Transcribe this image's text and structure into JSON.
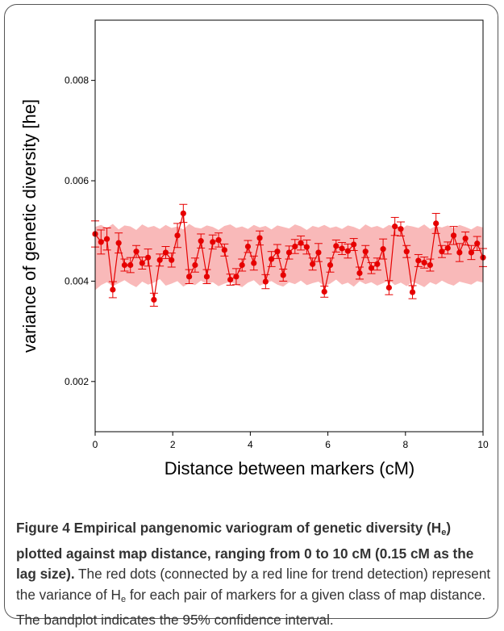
{
  "chart_data": {
    "type": "line",
    "ylabel": "variance of genetic diversity [he]",
    "xlabel": "Distance between markers (cM)",
    "xlim": [
      0,
      10
    ],
    "ylim": [
      0.001,
      0.0092
    ],
    "xticks": [
      0,
      2,
      4,
      6,
      8,
      10
    ],
    "yticks": [
      0.002,
      0.004,
      0.006,
      0.008
    ],
    "ytick_labels": [
      "0.002",
      "0.004",
      "0.006",
      "0.008"
    ],
    "colors": {
      "line": "#e60000",
      "band": "#f9b9b9",
      "points": "#e60000"
    },
    "lag": 0.15,
    "values": [
      0.00494,
      0.00478,
      0.00484,
      0.00383,
      0.00476,
      0.00432,
      0.00432,
      0.00459,
      0.00436,
      0.00447,
      0.00363,
      0.00442,
      0.00457,
      0.00442,
      0.00491,
      0.00535,
      0.00409,
      0.00432,
      0.0048,
      0.00409,
      0.00478,
      0.00482,
      0.00462,
      0.00403,
      0.00409,
      0.00432,
      0.00469,
      0.00436,
      0.00486,
      0.00399,
      0.00444,
      0.00459,
      0.00412,
      0.00457,
      0.00469,
      0.00476,
      0.00468,
      0.00434,
      0.00457,
      0.00379,
      0.00432,
      0.0047,
      0.00465,
      0.0046,
      0.00473,
      0.00416,
      0.00459,
      0.00426,
      0.00434,
      0.00464,
      0.00387,
      0.00509,
      0.00504,
      0.00459,
      0.00378,
      0.00441,
      0.00437,
      0.00432,
      0.00515,
      0.00459,
      0.00466,
      0.00491,
      0.00457,
      0.00485,
      0.00457,
      0.00475,
      0.00447
    ],
    "errors": [
      0.00026,
      0.00024,
      0.00022,
      0.00016,
      0.0002,
      0.00012,
      0.00015,
      0.00012,
      0.00012,
      0.00017,
      0.00013,
      0.00012,
      0.00012,
      0.00014,
      0.00024,
      0.00018,
      0.00014,
      0.00014,
      0.00014,
      0.00014,
      0.00014,
      0.00014,
      0.00012,
      0.00011,
      0.00016,
      0.00012,
      0.00012,
      0.00014,
      0.00014,
      0.00014,
      0.00015,
      0.00014,
      0.00012,
      0.00013,
      0.00014,
      0.00014,
      0.00014,
      0.00012,
      0.00018,
      0.00011,
      0.00014,
      0.00012,
      0.00012,
      0.00014,
      0.00012,
      0.00012,
      0.00012,
      0.00011,
      0.00012,
      0.0002,
      0.00014,
      0.00018,
      0.00014,
      0.00012,
      0.00013,
      0.00012,
      0.00011,
      0.00012,
      0.0002,
      0.00012,
      0.00012,
      0.00018,
      0.00018,
      0.00013,
      0.00014,
      0.00014,
      0.00018
    ],
    "band_upper": [
      0.00508,
      0.00512,
      0.00506,
      0.00514,
      0.00503,
      0.00511,
      0.00509,
      0.00502,
      0.00513,
      0.00507,
      0.0051,
      0.00504,
      0.00512,
      0.00506,
      0.00509,
      0.00503,
      0.00514,
      0.00507,
      0.00505,
      0.00511,
      0.00508,
      0.00502,
      0.0051,
      0.00513,
      0.00506,
      0.00509,
      0.00504,
      0.00512,
      0.00507,
      0.0051,
      0.00503,
      0.00511,
      0.00508,
      0.00505,
      0.00513,
      0.00509,
      0.00502,
      0.0051,
      0.00507,
      0.00512,
      0.00506,
      0.00509,
      0.00504,
      0.00511,
      0.00508,
      0.00503,
      0.00513,
      0.00507,
      0.0051,
      0.00505,
      0.00512,
      0.00508,
      0.00502,
      0.00511,
      0.00509,
      0.00506,
      0.00513,
      0.00504,
      0.0051,
      0.00507,
      0.00511,
      0.00505,
      0.00512,
      0.00508,
      0.00503,
      0.0051,
      0.00507
    ],
    "band_lower": [
      0.00382,
      0.00392,
      0.00398,
      0.0039,
      0.00396,
      0.00402,
      0.00394,
      0.00388,
      0.00399,
      0.00393,
      0.00397,
      0.00404,
      0.00391,
      0.00395,
      0.004,
      0.00389,
      0.00396,
      0.00392,
      0.00401,
      0.00394,
      0.00398,
      0.0039,
      0.00395,
      0.00399,
      0.00393,
      0.00388,
      0.00397,
      0.00402,
      0.00391,
      0.00396,
      0.004,
      0.00393,
      0.00389,
      0.00398,
      0.00394,
      0.00401,
      0.00392,
      0.00396,
      0.00399,
      0.0039,
      0.00395,
      0.00403,
      0.00393,
      0.00397,
      0.00389,
      0.004,
      0.00394,
      0.00398,
      0.00391,
      0.00396,
      0.00402,
      0.00392,
      0.00397,
      0.0039,
      0.00399,
      0.00394,
      0.00388,
      0.00398,
      0.00393,
      0.00401,
      0.00395,
      0.00391,
      0.00399,
      0.00396,
      0.00393,
      0.004,
      0.00397
    ]
  },
  "caption": {
    "bold_1": "Figure 4 Empirical pangenomic variogram of genetic diversity (H",
    "bold_sub": "e",
    "bold_2": ") plotted against map distance, ranging from 0 to 10 cM (0.15 cM as the lag size).",
    "text_1": " The red dots (connected by a red line for trend detection) represent the variance of H",
    "text_sub": "e",
    "text_2": " for each pair of markers for a given class of map distance. The bandplot indicates the 95% confidence interval."
  }
}
